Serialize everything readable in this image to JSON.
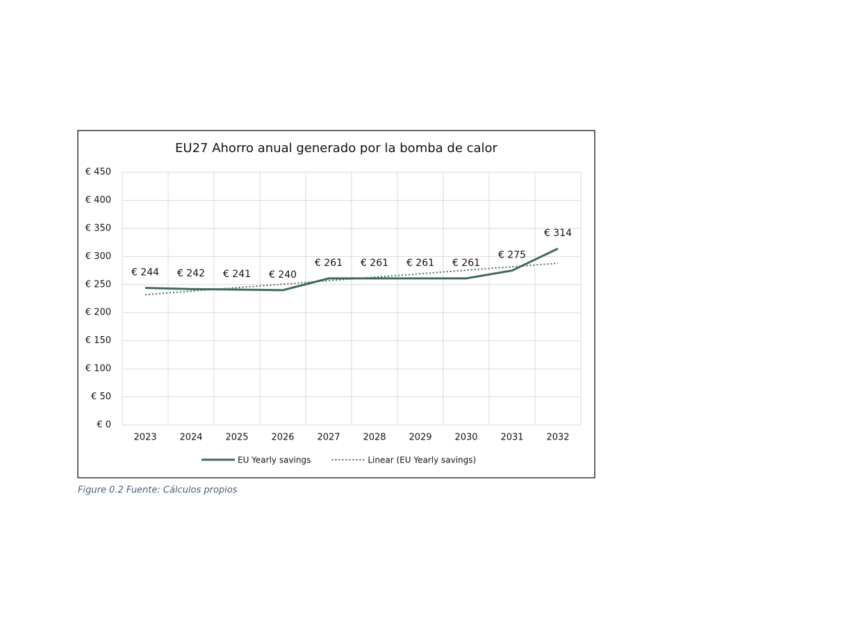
{
  "chart_data": {
    "type": "line",
    "title": "EU27 Ahorro anual generado por la bomba de calor",
    "caption": "Figure 0.2 Fuente: Cálculos propios",
    "categories": [
      "2023",
      "2024",
      "2025",
      "2026",
      "2027",
      "2028",
      "2029",
      "2030",
      "2031",
      "2032"
    ],
    "series": [
      {
        "name": "EU Yearly savings",
        "color": "#406863",
        "values": [
          244,
          242,
          241,
          240,
          261,
          261,
          261,
          261,
          275,
          314
        ],
        "value_labels": [
          "€ 244",
          "€ 242",
          "€ 241",
          "€ 240",
          "€ 261",
          "€ 261",
          "€ 261",
          "€ 261",
          "€ 275",
          "€ 314"
        ]
      },
      {
        "name": "Linear (EU Yearly savings)",
        "color": "#406863",
        "dash": "dotted",
        "values": [
          232.1,
          238.3,
          244.5,
          250.7,
          256.9,
          263.1,
          269.3,
          275.5,
          281.7,
          287.9
        ]
      }
    ],
    "ylim": [
      0,
      450
    ],
    "yticks": [
      {
        "value": 0,
        "label": "€ 0"
      },
      {
        "value": 50,
        "label": "€ 50"
      },
      {
        "value": 100,
        "label": "€ 100"
      },
      {
        "value": 150,
        "label": "€ 150"
      },
      {
        "value": 200,
        "label": "€ 200"
      },
      {
        "value": 250,
        "label": "€ 250"
      },
      {
        "value": 300,
        "label": "€ 300"
      },
      {
        "value": 350,
        "label": "€ 350"
      },
      {
        "value": 400,
        "label": "€ 400"
      },
      {
        "value": 450,
        "label": "€ 450"
      }
    ],
    "grid": true,
    "legend": "bottom"
  }
}
